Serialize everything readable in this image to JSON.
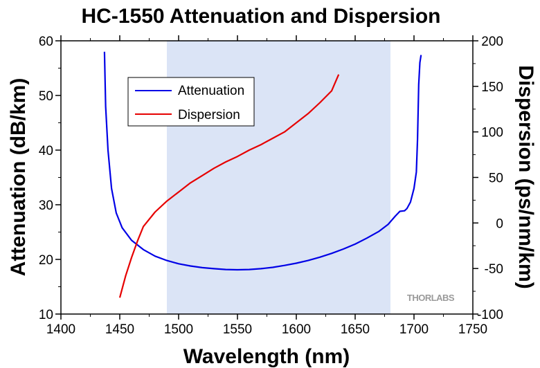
{
  "chart_data": {
    "type": "line",
    "title": "HC-1550 Attenuation and Dispersion",
    "xlabel": "Wavelength (nm)",
    "ylabel": "Attenuation (dB/km)",
    "y2label": "Dispersion (ps/nm/km)",
    "xlim": [
      1400,
      1750
    ],
    "ylim": [
      10,
      60
    ],
    "y2lim": [
      -100,
      200
    ],
    "xticks": [
      1400,
      1450,
      1500,
      1550,
      1600,
      1650,
      1700,
      1750
    ],
    "yticks": [
      10,
      20,
      30,
      40,
      50,
      60
    ],
    "y2ticks": [
      -100,
      -50,
      0,
      50,
      100,
      150,
      200
    ],
    "highlight_band": {
      "x": [
        1490,
        1680
      ],
      "color": "#dbe4f6"
    },
    "legend_position": "top-left",
    "grid": false,
    "series": [
      {
        "name": "Attenuation",
        "axis": "left",
        "color": "#0000e6",
        "points": [
          [
            1437,
            58
          ],
          [
            1438,
            48
          ],
          [
            1440,
            40
          ],
          [
            1443,
            33
          ],
          [
            1447,
            28.5
          ],
          [
            1452,
            25.8
          ],
          [
            1460,
            23.5
          ],
          [
            1470,
            21.8
          ],
          [
            1480,
            20.6
          ],
          [
            1490,
            19.8
          ],
          [
            1500,
            19.2
          ],
          [
            1510,
            18.8
          ],
          [
            1520,
            18.5
          ],
          [
            1530,
            18.3
          ],
          [
            1540,
            18.15
          ],
          [
            1550,
            18.1
          ],
          [
            1560,
            18.15
          ],
          [
            1570,
            18.3
          ],
          [
            1580,
            18.55
          ],
          [
            1590,
            18.9
          ],
          [
            1600,
            19.3
          ],
          [
            1610,
            19.8
          ],
          [
            1620,
            20.4
          ],
          [
            1630,
            21.1
          ],
          [
            1640,
            21.9
          ],
          [
            1650,
            22.8
          ],
          [
            1660,
            23.9
          ],
          [
            1670,
            25.1
          ],
          [
            1678,
            26.4
          ],
          [
            1684,
            27.9
          ],
          [
            1688,
            28.8
          ],
          [
            1692,
            28.9
          ],
          [
            1694,
            29.3
          ],
          [
            1697,
            30.5
          ],
          [
            1700,
            33
          ],
          [
            1702,
            36
          ],
          [
            1703,
            42
          ],
          [
            1704,
            52
          ],
          [
            1705,
            56
          ],
          [
            1706,
            57.4
          ]
        ]
      },
      {
        "name": "Dispersion",
        "axis": "right",
        "color": "#e60000",
        "points": [
          [
            1450,
            -82
          ],
          [
            1455,
            -58
          ],
          [
            1460,
            -38
          ],
          [
            1465,
            -20
          ],
          [
            1470,
            -4
          ],
          [
            1480,
            12
          ],
          [
            1490,
            24
          ],
          [
            1500,
            34
          ],
          [
            1510,
            44
          ],
          [
            1520,
            52
          ],
          [
            1530,
            60
          ],
          [
            1540,
            67
          ],
          [
            1550,
            73
          ],
          [
            1560,
            80
          ],
          [
            1570,
            86
          ],
          [
            1580,
            93
          ],
          [
            1590,
            100
          ],
          [
            1600,
            110
          ],
          [
            1610,
            120
          ],
          [
            1620,
            132
          ],
          [
            1630,
            145
          ],
          [
            1636,
            163
          ]
        ]
      }
    ]
  },
  "watermark": "THORLABS"
}
